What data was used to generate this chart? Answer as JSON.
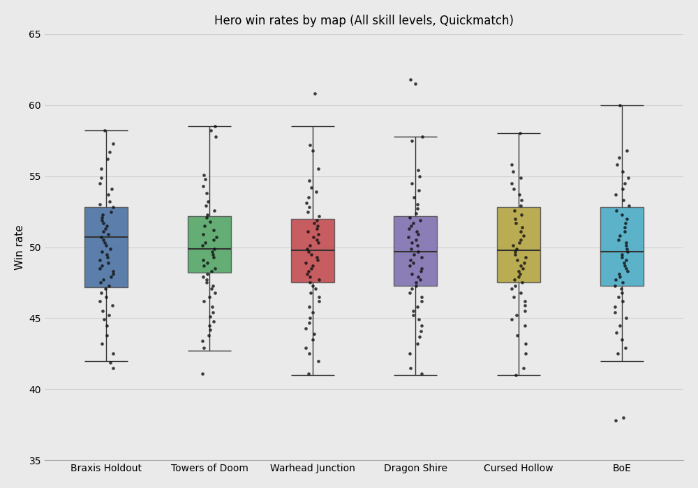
{
  "title": "Hero win rates by map (All skill levels, Quickmatch)",
  "ylabel": "Win rate",
  "ylim": [
    35,
    65
  ],
  "yticks": [
    35,
    40,
    45,
    50,
    55,
    60,
    65
  ],
  "maps": [
    "Braxis Holdout",
    "Towers of Doom",
    "Warhead Junction",
    "Dragon Shire",
    "Cursed Hollow",
    "BoE"
  ],
  "colors": [
    "#4c72a4",
    "#55a868",
    "#c44e52",
    "#8172b2",
    "#b5a642",
    "#4bacc6"
  ],
  "box_stats": {
    "Braxis Holdout": {
      "q1": 47.2,
      "median": 50.7,
      "q3": 52.8,
      "whislo": 42.0,
      "whishi": 58.2
    },
    "Towers of Doom": {
      "q1": 48.2,
      "median": 49.9,
      "q3": 52.2,
      "whislo": 42.7,
      "whishi": 58.5
    },
    "Warhead Junction": {
      "q1": 47.5,
      "median": 49.8,
      "q3": 52.0,
      "whislo": 41.0,
      "whishi": 58.5
    },
    "Dragon Shire": {
      "q1": 47.3,
      "median": 49.7,
      "q3": 52.2,
      "whislo": 41.0,
      "whishi": 57.8
    },
    "Cursed Hollow": {
      "q1": 47.5,
      "median": 49.8,
      "q3": 52.8,
      "whislo": 41.0,
      "whishi": 58.0
    },
    "BoE": {
      "q1": 47.3,
      "median": 49.7,
      "q3": 52.8,
      "whislo": 42.0,
      "whishi": 60.0
    }
  },
  "strip_points": {
    "Braxis Holdout": [
      58.2,
      57.3,
      56.7,
      56.2,
      55.5,
      54.9,
      54.5,
      54.1,
      53.7,
      53.2,
      53.0,
      52.8,
      52.5,
      52.3,
      52.1,
      51.9,
      51.7,
      51.5,
      51.3,
      51.1,
      50.9,
      50.7,
      50.5,
      50.3,
      50.1,
      49.9,
      49.7,
      49.5,
      49.3,
      49.1,
      48.9,
      48.7,
      48.5,
      48.3,
      48.1,
      47.9,
      47.7,
      47.5,
      47.3,
      47.1,
      46.8,
      46.5,
      46.2,
      45.9,
      45.5,
      45.2,
      44.9,
      44.5,
      43.8,
      43.2,
      42.5,
      41.9,
      41.5
    ],
    "Towers of Doom": [
      58.5,
      58.2,
      57.8,
      55.1,
      54.8,
      54.3,
      53.8,
      53.2,
      52.9,
      52.6,
      52.3,
      52.1,
      51.8,
      51.5,
      51.2,
      50.9,
      50.7,
      50.5,
      50.3,
      50.1,
      49.9,
      49.7,
      49.5,
      49.3,
      49.1,
      48.9,
      48.7,
      48.5,
      48.3,
      48.1,
      47.9,
      47.7,
      47.5,
      47.3,
      47.1,
      46.8,
      46.5,
      46.2,
      45.8,
      45.4,
      45.1,
      44.8,
      44.5,
      44.2,
      43.8,
      43.4,
      42.9,
      41.1
    ],
    "Warhead Junction": [
      60.8,
      57.2,
      56.8,
      55.5,
      54.7,
      54.2,
      53.9,
      53.5,
      53.1,
      52.8,
      52.5,
      52.2,
      51.9,
      51.7,
      51.5,
      51.3,
      51.1,
      50.9,
      50.7,
      50.5,
      50.3,
      50.1,
      49.9,
      49.7,
      49.5,
      49.3,
      49.1,
      48.9,
      48.7,
      48.5,
      48.3,
      48.1,
      47.9,
      47.7,
      47.5,
      47.3,
      47.1,
      46.8,
      46.5,
      46.2,
      45.8,
      45.4,
      45.0,
      44.7,
      44.3,
      43.9,
      43.5,
      42.9,
      42.5,
      42.0,
      41.1
    ],
    "Dragon Shire": [
      61.8,
      61.5,
      57.8,
      57.5,
      55.4,
      55.0,
      54.5,
      54.0,
      53.5,
      53.0,
      52.7,
      52.4,
      52.1,
      51.9,
      51.7,
      51.5,
      51.3,
      51.1,
      50.9,
      50.7,
      50.5,
      50.3,
      50.1,
      49.9,
      49.7,
      49.5,
      49.3,
      49.1,
      48.9,
      48.7,
      48.5,
      48.3,
      48.1,
      47.9,
      47.7,
      47.5,
      47.3,
      47.1,
      46.8,
      46.5,
      46.2,
      45.8,
      45.5,
      45.2,
      44.9,
      44.5,
      44.1,
      43.7,
      43.2,
      42.5,
      41.5,
      41.1
    ],
    "Cursed Hollow": [
      58.0,
      55.8,
      55.3,
      54.9,
      54.5,
      54.1,
      53.7,
      53.3,
      52.9,
      52.6,
      52.3,
      52.0,
      51.7,
      51.4,
      51.1,
      50.8,
      50.5,
      50.3,
      50.1,
      49.9,
      49.7,
      49.5,
      49.3,
      49.1,
      48.9,
      48.7,
      48.5,
      48.3,
      48.1,
      47.9,
      47.7,
      47.5,
      47.3,
      47.1,
      46.8,
      46.5,
      46.2,
      45.9,
      45.5,
      45.2,
      44.9,
      44.5,
      43.8,
      43.2,
      42.5,
      41.5,
      41.0
    ],
    "BoE": [
      60.0,
      56.8,
      56.3,
      55.8,
      55.3,
      54.9,
      54.5,
      54.1,
      53.7,
      53.3,
      52.9,
      52.6,
      52.3,
      52.0,
      51.7,
      51.4,
      51.1,
      50.8,
      50.5,
      50.3,
      50.1,
      49.9,
      49.7,
      49.5,
      49.3,
      49.1,
      48.9,
      48.7,
      48.5,
      48.3,
      48.1,
      47.9,
      47.7,
      47.5,
      47.3,
      47.1,
      46.8,
      46.5,
      46.2,
      45.8,
      45.4,
      45.0,
      44.5,
      44.0,
      43.5,
      42.9,
      42.5,
      38.0,
      37.8
    ]
  },
  "background_color": "#eaeaea",
  "plot_background": "#eaeaea",
  "grid_color": "#d0d0d0",
  "figsize": [
    10,
    7
  ],
  "dpi": 100
}
